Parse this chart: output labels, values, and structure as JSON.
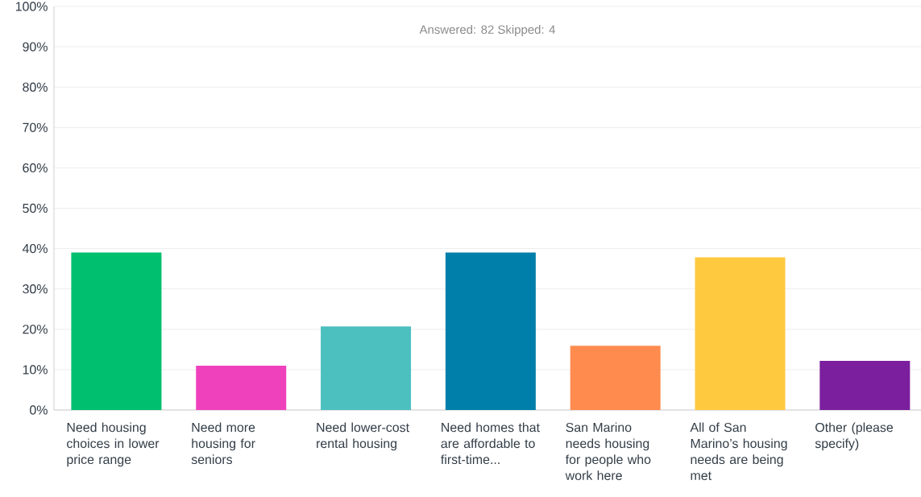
{
  "chart_data": {
    "type": "bar",
    "subtitle": "Answered: 82    Skipped: 4",
    "categories": [
      "Need housing choices in lower price range",
      "Need more housing for seniors",
      "Need lower-cost rental housing",
      "Need homes that are affordable to first-time...",
      "San Marino needs housing for people who work here",
      "All of San Marino’s housing needs are being met",
      "Other (please specify)"
    ],
    "values": [
      39.0,
      11.0,
      20.7,
      39.0,
      15.9,
      37.8,
      12.2
    ],
    "colors": [
      "#00bf6f",
      "#f041bd",
      "#4cbfbf",
      "#007faa",
      "#ff8b4f",
      "#ffc93f",
      "#7b1f9e"
    ],
    "ylim": [
      0,
      100
    ],
    "yticks": [
      {
        "value": 0,
        "label": "0%"
      },
      {
        "value": 10,
        "label": "10%"
      },
      {
        "value": 20,
        "label": "20%"
      },
      {
        "value": 30,
        "label": "30%"
      },
      {
        "value": 40,
        "label": "40%"
      },
      {
        "value": 50,
        "label": "50%"
      },
      {
        "value": 60,
        "label": "60%"
      },
      {
        "value": 70,
        "label": "70%"
      },
      {
        "value": 80,
        "label": "80%"
      },
      {
        "value": 90,
        "label": "90%"
      },
      {
        "value": 100,
        "label": "100%"
      }
    ],
    "grid": "y"
  }
}
